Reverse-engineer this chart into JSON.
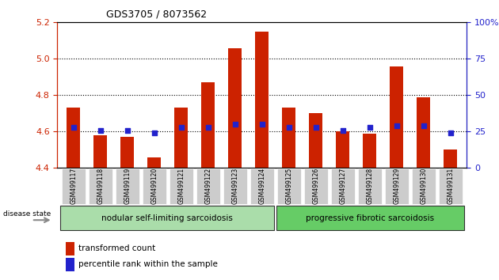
{
  "title": "GDS3705 / 8073562",
  "samples": [
    "GSM499117",
    "GSM499118",
    "GSM499119",
    "GSM499120",
    "GSM499121",
    "GSM499122",
    "GSM499123",
    "GSM499124",
    "GSM499125",
    "GSM499126",
    "GSM499127",
    "GSM499128",
    "GSM499129",
    "GSM499130",
    "GSM499131"
  ],
  "transformed_count": [
    4.73,
    4.58,
    4.57,
    4.46,
    4.73,
    4.87,
    5.06,
    5.15,
    4.73,
    4.7,
    4.6,
    4.59,
    4.96,
    4.79,
    4.5
  ],
  "percentile_rank": [
    28,
    26,
    26,
    24,
    28,
    28,
    30,
    30,
    28,
    28,
    26,
    28,
    29,
    29,
    24
  ],
  "ylim_left": [
    4.4,
    5.2
  ],
  "ylim_right": [
    0,
    100
  ],
  "yticks_left": [
    4.4,
    4.6,
    4.8,
    5.0,
    5.2
  ],
  "yticks_right": [
    0,
    25,
    50,
    75,
    100
  ],
  "grid_lines": [
    4.6,
    4.8,
    5.0
  ],
  "bar_color": "#cc2200",
  "dot_color": "#2222cc",
  "bar_width": 0.5,
  "group1_label": "nodular self-limiting sarcoidosis",
  "group2_label": "progressive fibrotic sarcoidosis",
  "group1_count": 8,
  "disease_state_label": "disease state",
  "legend_bar_label": "transformed count",
  "legend_dot_label": "percentile rank within the sample",
  "tick_label_area_bg": "#cccccc",
  "group_area_bg1": "#aaddaa",
  "group_area_bg2": "#66cc66"
}
